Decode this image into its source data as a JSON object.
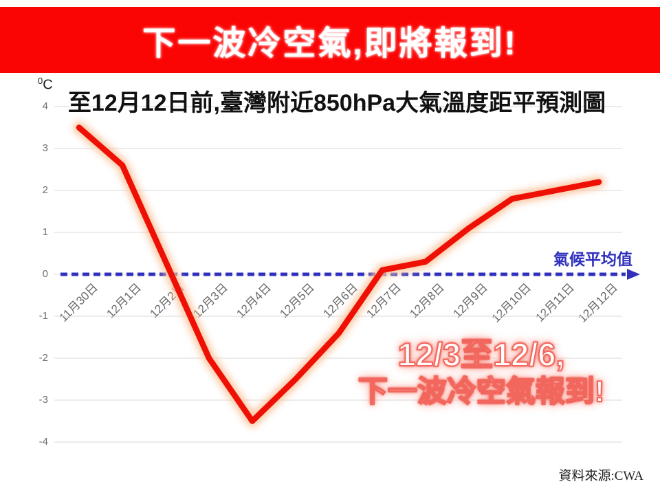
{
  "banner": {
    "text": "下一波冷空氣,即將報到!"
  },
  "header": {
    "title": "至12月12日前,臺灣附近850hPa大氣溫度距平預測圖",
    "unit_sup": "0",
    "unit_main": "C"
  },
  "annotation": {
    "line1": "12/3至12/6,",
    "line2": "下一波冷空氣報到!"
  },
  "source": "資料來源:CWA",
  "colors": {
    "banner_bg": "#fb0504",
    "series": "#ef1005",
    "series_glow": "#f9c49d",
    "baseline": "#3030bd",
    "grid": "#d9d9d9",
    "tick_text": "#6f6f6f"
  },
  "chart_data": {
    "type": "line",
    "title": "至12月12日前,臺灣附近850hPa大氣溫度距平預測圖",
    "categories": [
      "11月30日",
      "12月1日",
      "12月2日",
      "12月3日",
      "12月4日",
      "12月5日",
      "12月6日",
      "12月7日",
      "12月8日",
      "12月9日",
      "12月10日",
      "12月11日",
      "12月12日"
    ],
    "values": [
      3.5,
      2.6,
      0.3,
      -2.0,
      -3.5,
      -2.5,
      -1.4,
      0.1,
      0.3,
      1.1,
      1.8,
      2.0,
      2.2
    ],
    "xlabel": "",
    "ylabel": "0C",
    "ylim": [
      -4,
      4
    ],
    "y_ticks": [
      4,
      3,
      2,
      1,
      0,
      -1,
      -2,
      -3,
      -4
    ],
    "grid": true,
    "legend_position": "none",
    "baseline": {
      "value": 0,
      "label": "氣候平均值",
      "style": "dashed-arrow",
      "color": "#3030bd"
    }
  }
}
